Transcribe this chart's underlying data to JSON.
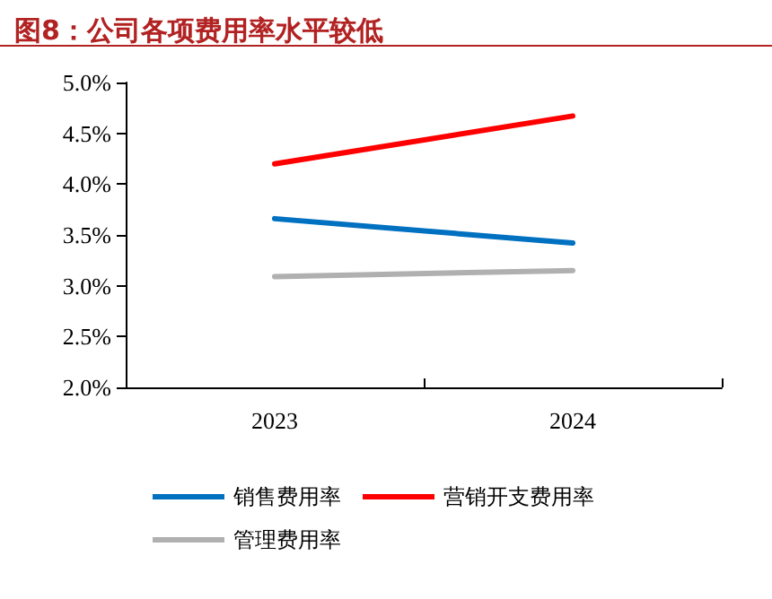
{
  "chart_data": {
    "type": "line",
    "title": "图8：公司各项费用率水平较低",
    "categories": [
      "2023",
      "2024"
    ],
    "series": [
      {
        "name": "销售费用率",
        "color": "#0070c0",
        "values": [
          3.66,
          3.42
        ]
      },
      {
        "name": "营销开支费用率",
        "color": "#ff0000",
        "values": [
          4.2,
          4.67
        ]
      },
      {
        "name": "管理费用率",
        "color": "#b0b0b0",
        "values": [
          3.09,
          3.15
        ]
      }
    ],
    "ylim": [
      2,
      5
    ],
    "yticks": [
      {
        "value": 2,
        "label": "2.0%"
      },
      {
        "value": 2.5,
        "label": "2.5%"
      },
      {
        "value": 3,
        "label": "3.0%"
      },
      {
        "value": 3.5,
        "label": "3.5%"
      },
      {
        "value": 4,
        "label": "4.0%"
      },
      {
        "value": 4.5,
        "label": "4.5%"
      },
      {
        "value": 5,
        "label": "5.0%"
      }
    ],
    "grid": false,
    "legend": "bottom",
    "marker": "none",
    "line_style": "solid"
  }
}
